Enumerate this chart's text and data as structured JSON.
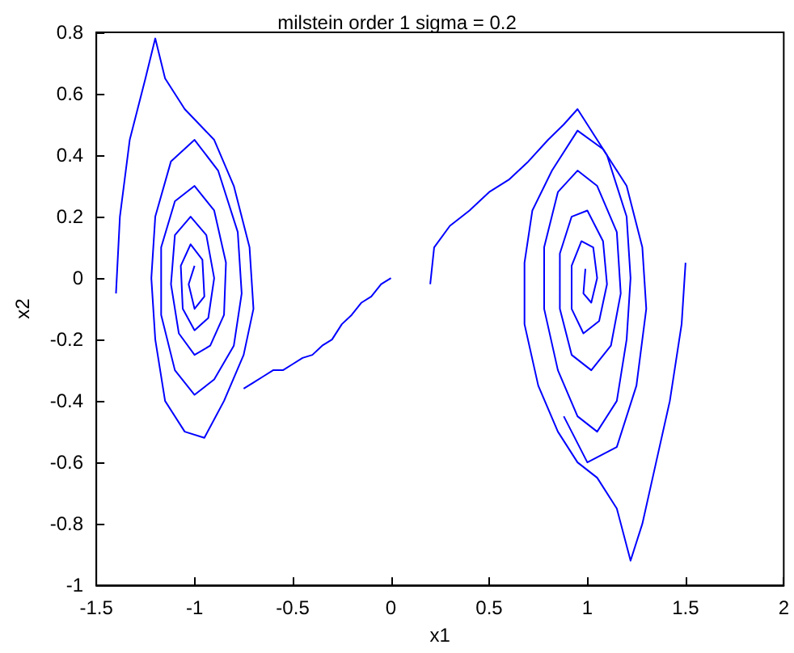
{
  "chart_data": {
    "type": "line",
    "title": "milstein order 1 sigma = 0.2",
    "xlabel": "x1",
    "ylabel": "x2",
    "xlim": [
      -1.5,
      2
    ],
    "xticks": [
      -1.5,
      -1,
      -0.5,
      0,
      0.5,
      1,
      1.5,
      2
    ],
    "ylim": [
      -1,
      0.8
    ],
    "yticks": [
      -1,
      -0.8,
      -0.6,
      -0.4,
      -0.2,
      0,
      0.2,
      0.4,
      0.6,
      0.8
    ],
    "grid": false,
    "marker": "none",
    "line_style": "solid",
    "series": [
      {
        "color": "#0000ff",
        "x": [
          0,
          -0.05,
          -0.1,
          -0.15,
          -0.2,
          -0.25,
          -0.3,
          -0.35,
          -0.4,
          -0.45,
          -0.5,
          -0.55,
          -0.6,
          -0.65,
          -0.7,
          -0.75
        ],
        "values": [
          0,
          -0.02,
          -0.06,
          -0.08,
          -0.12,
          -0.15,
          -0.2,
          -0.22,
          -0.25,
          -0.26,
          -0.28,
          -0.3,
          -0.3,
          -0.32,
          -0.34,
          -0.36
        ]
      },
      {
        "color": "#0000ff",
        "x": [
          -1.4,
          -1.38,
          -1.33,
          -1.25,
          -1.2,
          -1.15,
          -1.05,
          -0.9,
          -0.8,
          -0.72,
          -0.7,
          -0.75,
          -0.85,
          -0.95,
          -1.05,
          -1.15,
          -1.2,
          -1.22,
          -1.2,
          -1.12,
          -1,
          -0.88,
          -0.78,
          -0.76,
          -0.8,
          -0.9,
          -1,
          -1.1,
          -1.17,
          -1.17,
          -1.1,
          -1,
          -0.9,
          -0.84,
          -0.85,
          -0.92,
          -1,
          -1.08,
          -1.12,
          -1.1,
          -1.02,
          -0.94,
          -0.9,
          -0.93,
          -1,
          -1.06,
          -1.07,
          -1.02,
          -0.96,
          -0.95,
          -1,
          -1.03,
          -1
        ],
        "values": [
          -0.05,
          0.2,
          0.45,
          0.65,
          0.78,
          0.65,
          0.55,
          0.45,
          0.3,
          0.1,
          -0.1,
          -0.25,
          -0.4,
          -0.52,
          -0.5,
          -0.4,
          -0.2,
          0,
          0.2,
          0.38,
          0.45,
          0.35,
          0.15,
          -0.05,
          -0.22,
          -0.33,
          -0.38,
          -0.3,
          -0.12,
          0.1,
          0.25,
          0.3,
          0.22,
          0.05,
          -0.12,
          -0.22,
          -0.25,
          -0.18,
          -0.02,
          0.14,
          0.2,
          0.14,
          0,
          -0.13,
          -0.17,
          -0.1,
          0.04,
          0.11,
          0.06,
          -0.06,
          -0.1,
          -0.02,
          0.04
        ]
      },
      {
        "color": "#0000ff",
        "x": [
          0.2,
          0.22,
          0.3,
          0.4,
          0.5,
          0.6,
          0.7,
          0.8,
          0.88,
          0.95,
          1,
          1.1,
          1.2,
          1.22,
          1.2,
          1.15,
          1.05,
          0.95,
          0.85,
          0.78,
          0.78,
          0.85,
          0.95,
          1.05,
          1.15,
          1.17,
          1.12,
          1.02,
          0.92,
          0.86,
          0.86,
          0.92,
          1,
          1.08,
          1.1,
          1.06,
          0.98,
          0.92,
          0.92,
          0.97,
          1.03,
          1.05,
          1.02,
          0.98,
          0.99
        ],
        "values": [
          -0.02,
          0.1,
          0.17,
          0.22,
          0.28,
          0.32,
          0.38,
          0.45,
          0.5,
          0.55,
          0.5,
          0.4,
          0.2,
          0,
          -0.2,
          -0.4,
          -0.5,
          -0.45,
          -0.3,
          -0.1,
          0.1,
          0.28,
          0.35,
          0.3,
          0.15,
          -0.05,
          -0.22,
          -0.3,
          -0.25,
          -0.1,
          0.08,
          0.2,
          0.22,
          0.12,
          -0.02,
          -0.14,
          -0.18,
          -0.1,
          0.04,
          0.12,
          0.1,
          0,
          -0.08,
          -0.05,
          0.03
        ]
      },
      {
        "color": "#0000ff",
        "x": [
          1.5,
          1.48,
          1.42,
          1.35,
          1.28,
          1.22,
          1.15,
          1.05,
          0.95,
          0.85,
          0.75,
          0.68,
          0.68,
          0.72,
          0.82,
          0.95,
          1.08,
          1.2,
          1.28,
          1.3,
          1.25,
          1.15,
          1,
          0.88
        ],
        "values": [
          0.05,
          -0.15,
          -0.4,
          -0.6,
          -0.8,
          -0.92,
          -0.75,
          -0.65,
          -0.6,
          -0.5,
          -0.35,
          -0.15,
          0.05,
          0.22,
          0.35,
          0.48,
          0.42,
          0.3,
          0.1,
          -0.1,
          -0.35,
          -0.55,
          -0.6,
          -0.45
        ]
      }
    ]
  }
}
